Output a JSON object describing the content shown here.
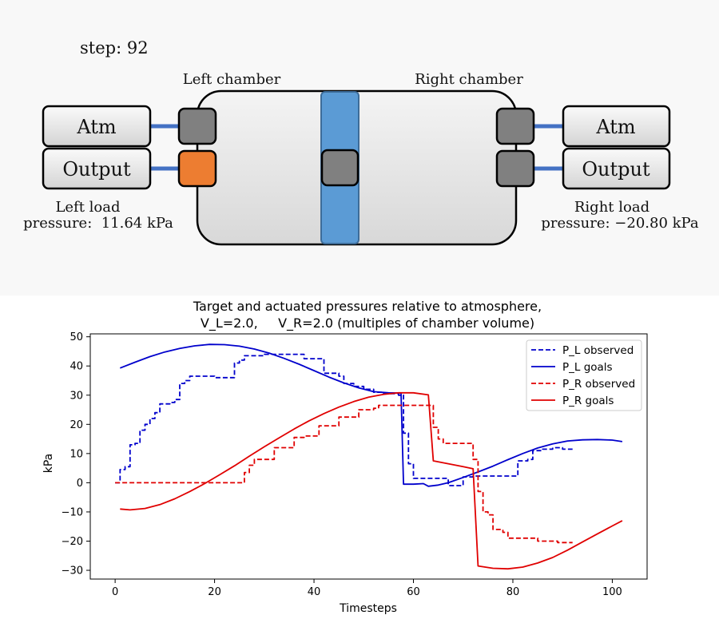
{
  "scene": {
    "step_text": "step: 92",
    "left_chamber_label": "Left chamber",
    "right_chamber_label": "Right chamber",
    "left_atm_label": "Atm",
    "left_output_label": "Output",
    "right_atm_label": "Atm",
    "right_output_label": "Output",
    "left_load_line1": "Left load",
    "left_load_line2": "pressure:  11.64 kPa",
    "right_load_line1": "Right load",
    "right_load_line2": "pressure: −20.80 kPa",
    "colors": {
      "piston": "#5b9bd5",
      "valve_closed": "#808080",
      "valve_open": "#ed7d31",
      "pipe": "#4472c4"
    }
  },
  "chart_data": {
    "type": "line",
    "title_line1": "Target and actuated pressures relative to atmosphere,",
    "title_line2": "V_L=2.0,     V_R=2.0 (multiples of chamber volume)",
    "xlabel": "Timesteps",
    "ylabel": "kPa",
    "xlim": [
      -5,
      107
    ],
    "ylim": [
      -33,
      51
    ],
    "xticks": [
      0,
      20,
      40,
      60,
      80,
      100
    ],
    "yticks": [
      -30,
      -20,
      -10,
      0,
      10,
      20,
      30,
      40,
      50
    ],
    "legend_position": "top-right",
    "grid": false,
    "series": [
      {
        "name": "P_L observed",
        "color": "#0000cc",
        "dash": true,
        "steps": [
          [
            0,
            0
          ],
          [
            1,
            4.5
          ],
          [
            2,
            5.5
          ],
          [
            3,
            13
          ],
          [
            4,
            13.5
          ],
          [
            5,
            18
          ],
          [
            6,
            20
          ],
          [
            7,
            22
          ],
          [
            8,
            24
          ],
          [
            9,
            27
          ],
          [
            11,
            27.5
          ],
          [
            12,
            28.5
          ],
          [
            13,
            34
          ],
          [
            14,
            35
          ],
          [
            15,
            36.5
          ],
          [
            19,
            36.5
          ],
          [
            20,
            36
          ],
          [
            23,
            36
          ],
          [
            24,
            41
          ],
          [
            25,
            42
          ],
          [
            26,
            43.5
          ],
          [
            29,
            43.5
          ],
          [
            30,
            44
          ],
          [
            37,
            44
          ],
          [
            38,
            42.5
          ],
          [
            41,
            42.5
          ],
          [
            42,
            37.5
          ],
          [
            45,
            36.5
          ],
          [
            46,
            34
          ],
          [
            48,
            33
          ],
          [
            50,
            32
          ],
          [
            52,
            31
          ],
          [
            54,
            30.5
          ],
          [
            57,
            30
          ],
          [
            58,
            17
          ],
          [
            59,
            6.5
          ],
          [
            60,
            1.5
          ],
          [
            66,
            1.5
          ],
          [
            67,
            -1
          ],
          [
            69,
            -1
          ],
          [
            70,
            2
          ],
          [
            72,
            2.3
          ],
          [
            80,
            2.3
          ],
          [
            81,
            7.5
          ],
          [
            83,
            8
          ],
          [
            84,
            11
          ],
          [
            86,
            11.5
          ],
          [
            88,
            12
          ],
          [
            90,
            11.5
          ],
          [
            92,
            11.5
          ]
        ]
      },
      {
        "name": "P_L goals",
        "color": "#0000cc",
        "dash": false,
        "points": [
          [
            1,
            39.3
          ],
          [
            4,
            41.3
          ],
          [
            7,
            43.2
          ],
          [
            10,
            44.8
          ],
          [
            13,
            46
          ],
          [
            16,
            46.9
          ],
          [
            19,
            47.4
          ],
          [
            22,
            47.3
          ],
          [
            25,
            46.8
          ],
          [
            28,
            45.8
          ],
          [
            31,
            44.4
          ],
          [
            34,
            42.6
          ],
          [
            37,
            40.6
          ],
          [
            40,
            38.4
          ],
          [
            43,
            36.2
          ],
          [
            46,
            34.2
          ],
          [
            49,
            32.5
          ],
          [
            52,
            31.2
          ],
          [
            55,
            30.8
          ],
          [
            57.5,
            30.7
          ],
          [
            58,
            -0.5
          ],
          [
            60,
            -0.5
          ],
          [
            62,
            -0.3
          ],
          [
            63,
            -1.2
          ],
          [
            65,
            -0.8
          ],
          [
            67,
            0
          ],
          [
            70,
            1.8
          ],
          [
            73,
            3.7
          ],
          [
            76,
            5.7
          ],
          [
            79,
            7.9
          ],
          [
            82,
            10
          ],
          [
            85,
            11.9
          ],
          [
            88,
            13.3
          ],
          [
            91,
            14.3
          ],
          [
            94,
            14.7
          ],
          [
            97,
            14.8
          ],
          [
            100,
            14.6
          ],
          [
            102,
            14.1
          ]
        ]
      },
      {
        "name": "P_R observed",
        "color": "#e00000",
        "dash": true,
        "steps": [
          [
            0,
            0
          ],
          [
            25,
            0
          ],
          [
            26,
            3.5
          ],
          [
            27,
            6
          ],
          [
            28,
            8
          ],
          [
            31,
            8
          ],
          [
            32,
            12
          ],
          [
            35,
            12
          ],
          [
            36,
            15.5
          ],
          [
            38,
            16
          ],
          [
            40,
            16
          ],
          [
            41,
            19.5
          ],
          [
            44,
            19.5
          ],
          [
            45,
            22.5
          ],
          [
            48,
            22.5
          ],
          [
            49,
            25
          ],
          [
            52,
            25.5
          ],
          [
            53,
            26.5
          ],
          [
            63,
            26.5
          ],
          [
            64,
            19
          ],
          [
            65,
            15
          ],
          [
            66,
            13.5
          ],
          [
            71,
            13.5
          ],
          [
            72,
            8
          ],
          [
            73,
            -3
          ],
          [
            74,
            -10
          ],
          [
            75,
            -11
          ],
          [
            76,
            -16
          ],
          [
            78,
            -17
          ],
          [
            79,
            -19
          ],
          [
            84,
            -19
          ],
          [
            85,
            -20
          ],
          [
            89,
            -20.5
          ],
          [
            92,
            -20.5
          ]
        ]
      },
      {
        "name": "P_R goals",
        "color": "#e00000",
        "dash": false,
        "points": [
          [
            1,
            -9
          ],
          [
            3,
            -9.3
          ],
          [
            6,
            -8.8
          ],
          [
            9,
            -7.5
          ],
          [
            12,
            -5.5
          ],
          [
            15,
            -3
          ],
          [
            18,
            -0.3
          ],
          [
            21,
            2.7
          ],
          [
            24,
            5.8
          ],
          [
            27,
            9.1
          ],
          [
            30,
            12.3
          ],
          [
            33,
            15.4
          ],
          [
            36,
            18.4
          ],
          [
            39,
            21.2
          ],
          [
            42,
            23.7
          ],
          [
            45,
            25.9
          ],
          [
            48,
            27.8
          ],
          [
            51,
            29.3
          ],
          [
            54,
            30.3
          ],
          [
            57,
            30.8
          ],
          [
            60,
            30.8
          ],
          [
            63,
            30.1
          ],
          [
            64,
            7.5
          ],
          [
            67,
            6.5
          ],
          [
            70,
            5.5
          ],
          [
            72,
            4.8
          ],
          [
            73,
            -28.5
          ],
          [
            76,
            -29.3
          ],
          [
            79,
            -29.5
          ],
          [
            82,
            -28.9
          ],
          [
            85,
            -27.5
          ],
          [
            88,
            -25.6
          ],
          [
            91,
            -23.1
          ],
          [
            94,
            -20.3
          ],
          [
            97,
            -17.5
          ],
          [
            100,
            -14.8
          ],
          [
            102,
            -13
          ]
        ]
      }
    ]
  }
}
